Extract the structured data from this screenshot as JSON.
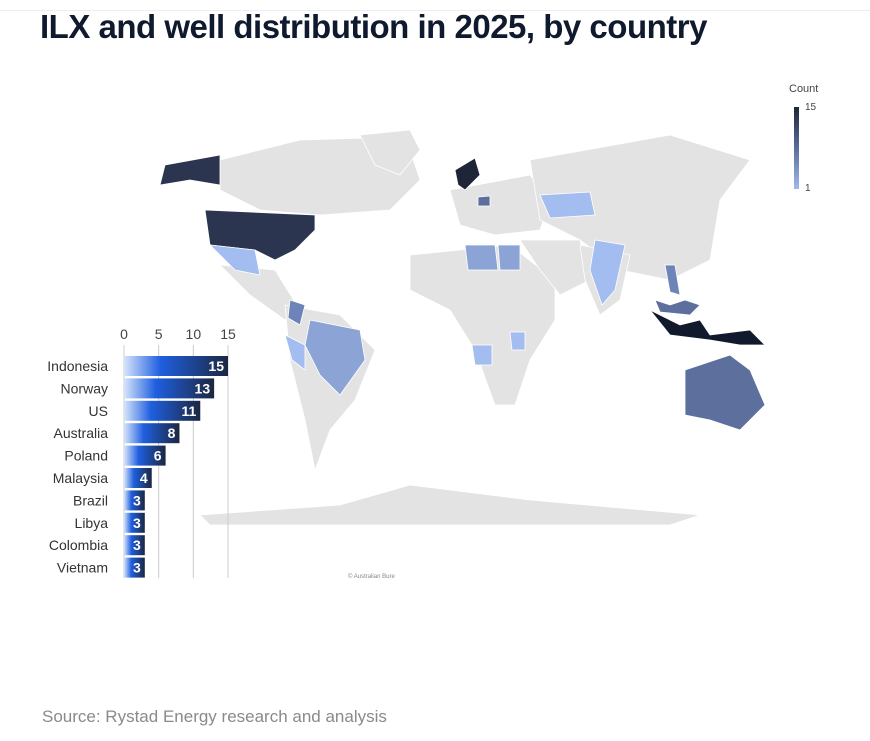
{
  "title": "ILX and well distribution in 2025, by country",
  "source": "Source: Rystad Energy research and analysis",
  "map_credit": "© Australian Bure",
  "legend": {
    "title": "Count",
    "max_label": "15",
    "min_label": "1",
    "min_color": "#9fb9ef",
    "max_color": "#1e2536"
  },
  "map_colors": {
    "land": "#e3e3e3",
    "border": "#ffffff"
  },
  "chart_data": {
    "type": "bar",
    "orientation": "horizontal",
    "categories": [
      "Indonesia",
      "Norway",
      "US",
      "Australia",
      "Poland",
      "Malaysia",
      "Brazil",
      "Libya",
      "Colombia",
      "Vietnam"
    ],
    "values": [
      15,
      13,
      11,
      8,
      6,
      4,
      3,
      3,
      3,
      3
    ],
    "xticks": [
      0,
      5,
      10,
      15
    ],
    "xlim": [
      0,
      15
    ],
    "grid": true,
    "bar_gradient": [
      "#d6e4fb",
      "#1f5fe0",
      "#1c2740"
    ]
  }
}
